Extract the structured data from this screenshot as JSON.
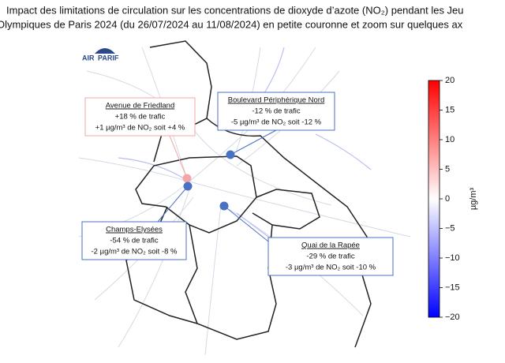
{
  "title": {
    "lines": [
      "Impact des limitations de circulation sur les concentrations de dioxyde d’azote (NO₂) pendant les Jeu",
      "Olympiques de Paris 2024 (du 26/07/2024 au 11/08/2024) en petite couronne et zoom sur quelques ax"
    ]
  },
  "logo": {
    "left": "AIR",
    "right": "PARIF"
  },
  "annotations": [
    {
      "title": "Avenue de Friedland",
      "lines": [
        "+18 % de trafic",
        "+1 µg/m³ de NO₂ soit +4 %"
      ],
      "color": "#f4a6a6"
    },
    {
      "title": "Boulevard Périphérique Nord",
      "lines": [
        "-12 % de trafic",
        "-5 µg/m³ de NO₂ soit -12 %"
      ],
      "color": "#4a72c4"
    },
    {
      "title": "Champs-Elysées",
      "lines": [
        "-54 % de trafic",
        "-2 µg/m³ de NO₂ soit -8 %"
      ],
      "color": "#4a72c4"
    },
    {
      "title": "Quai de la Rapée",
      "lines": [
        "-29 % de trafic",
        "-3 µg/m³ de NO₂ soit -10 %"
      ],
      "color": "#4a72c4"
    }
  ],
  "colorbar": {
    "label": "µg/m³",
    "range": [
      -20,
      20
    ],
    "ticks": [
      {
        "value": -20,
        "label": "−20"
      },
      {
        "value": -15,
        "label": "−15"
      },
      {
        "value": -10,
        "label": "−10"
      },
      {
        "value": -5,
        "label": "−5"
      },
      0,
      5,
      10,
      15,
      20
    ]
  }
}
